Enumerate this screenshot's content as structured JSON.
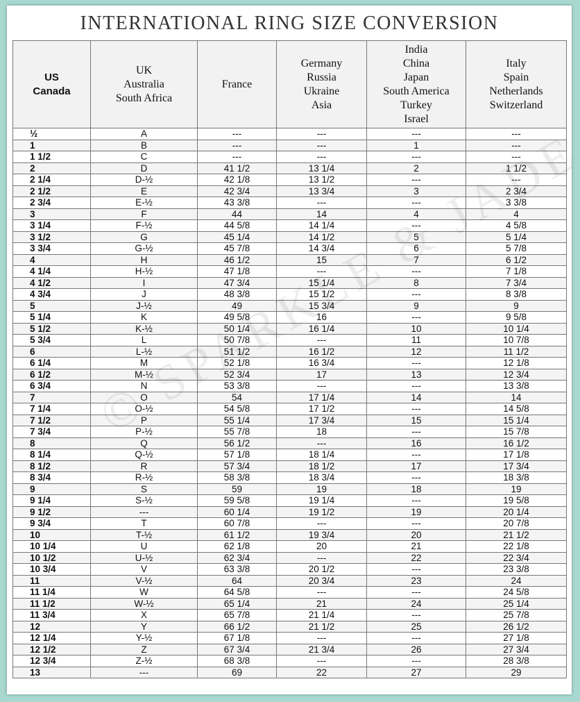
{
  "title": "INTERNATIONAL RING SIZE CONVERSION",
  "watermark": "© SPARKLE & JADE",
  "table": {
    "columns": [
      [
        "US",
        "Canada"
      ],
      [
        "UK",
        "Australia",
        "South Africa"
      ],
      [
        "France"
      ],
      [
        "Germany",
        "Russia",
        "Ukraine",
        "Asia"
      ],
      [
        "India",
        "China",
        "Japan",
        "South America",
        "Turkey",
        "Israel"
      ],
      [
        "Italy",
        "Spain",
        "Netherlands",
        "Switzerland"
      ]
    ],
    "rows": [
      [
        "½",
        "A",
        "---",
        "---",
        "---",
        "---"
      ],
      [
        "1",
        "B",
        "---",
        "---",
        "1",
        "---"
      ],
      [
        "1 1/2",
        "C",
        "---",
        "---",
        "---",
        "---"
      ],
      [
        "2",
        "D",
        "41 1/2",
        "13 1/4",
        "2",
        "1 1/2"
      ],
      [
        "2 1/4",
        "D-½",
        "42 1/8",
        "13 1/2",
        "---",
        "---"
      ],
      [
        "2 1/2",
        "E",
        "42 3/4",
        "13 3/4",
        "3",
        "2 3/4"
      ],
      [
        "2 3/4",
        "E-½",
        "43 3/8",
        "---",
        "---",
        "3 3/8"
      ],
      [
        "3",
        "F",
        "44",
        "14",
        "4",
        "4"
      ],
      [
        "3 1/4",
        "F-½",
        "44 5/8",
        "14 1/4",
        "---",
        "4 5/8"
      ],
      [
        "3 1/2",
        "G",
        "45 1/4",
        "14 1/2",
        "5",
        "5 1/4"
      ],
      [
        "3 3/4",
        "G-½",
        "45 7/8",
        "14 3/4",
        "6",
        "5 7/8"
      ],
      [
        "4",
        "H",
        "46 1/2",
        "15",
        "7",
        "6 1/2"
      ],
      [
        "4 1/4",
        "H-½",
        "47 1/8",
        "---",
        "---",
        "7 1/8"
      ],
      [
        "4 1/2",
        "I",
        "47 3/4",
        "15 1/4",
        "8",
        "7 3/4"
      ],
      [
        "4 3/4",
        "J",
        "48 3/8",
        "15 1/2",
        "---",
        "8 3/8"
      ],
      [
        "5",
        "J-½",
        "49",
        "15 3/4",
        "9",
        "9"
      ],
      [
        "5 1/4",
        "K",
        "49 5/8",
        "16",
        "---",
        "9 5/8"
      ],
      [
        "5 1/2",
        "K-½",
        "50 1/4",
        "16 1/4",
        "10",
        "10 1/4"
      ],
      [
        "5 3/4",
        "L",
        "50 7/8",
        "---",
        "11",
        "10 7/8"
      ],
      [
        "6",
        "L-½",
        "51 1/2",
        "16 1/2",
        "12",
        "11 1/2"
      ],
      [
        "6 1/4",
        "M",
        "52 1/8",
        "16 3/4",
        "---",
        "12 1/8"
      ],
      [
        "6 1/2",
        "M-½",
        "52 3/4",
        "17",
        "13",
        "12 3/4"
      ],
      [
        "6 3/4",
        "N",
        "53 3/8",
        "---",
        "---",
        "13 3/8"
      ],
      [
        "7",
        "O",
        "54",
        "17 1/4",
        "14",
        "14"
      ],
      [
        "7 1/4",
        "O-½",
        "54 5/8",
        "17 1/2",
        "---",
        "14 5/8"
      ],
      [
        "7 1/2",
        "P",
        "55 1/4",
        "17 3/4",
        "15",
        "15 1/4"
      ],
      [
        "7 3/4",
        "P-½",
        "55 7/8",
        "18",
        "---",
        "15 7/8"
      ],
      [
        "8",
        "Q",
        "56 1/2",
        "---",
        "16",
        "16 1/2"
      ],
      [
        "8 1/4",
        "Q-½",
        "57 1/8",
        "18 1/4",
        "---",
        "17 1/8"
      ],
      [
        "8 1/2",
        "R",
        "57 3/4",
        "18 1/2",
        "17",
        "17 3/4"
      ],
      [
        "8 3/4",
        "R-½",
        "58 3/8",
        "18 3/4",
        "---",
        "18 3/8"
      ],
      [
        "9",
        "S",
        "59",
        "19",
        "18",
        "19"
      ],
      [
        "9 1/4",
        "S-½",
        "59 5/8",
        "19 1/4",
        "---",
        "19 5/8"
      ],
      [
        "9 1/2",
        "---",
        "60 1/4",
        "19 1/2",
        "19",
        "20 1/4"
      ],
      [
        "9 3/4",
        "T",
        "60 7/8",
        "---",
        "---",
        "20 7/8"
      ],
      [
        "10",
        "T-½",
        "61 1/2",
        "19 3/4",
        "20",
        "21 1/2"
      ],
      [
        "10 1/4",
        "U",
        "62 1/8",
        "20",
        "21",
        "22 1/8"
      ],
      [
        "10 1/2",
        "U-½",
        "62 3/4",
        "---",
        "22",
        "22 3/4"
      ],
      [
        "10 3/4",
        "V",
        "63 3/8",
        "20 1/2",
        "---",
        "23 3/8"
      ],
      [
        "11",
        "V-½",
        "64",
        "20 3/4",
        "23",
        "24"
      ],
      [
        "11 1/4",
        "W",
        "64 5/8",
        "---",
        "---",
        "24 5/8"
      ],
      [
        "11 1/2",
        "W-½",
        "65 1/4",
        "21",
        "24",
        "25 1/4"
      ],
      [
        "11 3/4",
        "X",
        "65 7/8",
        "21 1/4",
        "---",
        "25 7/8"
      ],
      [
        "12",
        "Y",
        "66 1/2",
        "21 1/2",
        "25",
        "26 1/2"
      ],
      [
        "12 1/4",
        "Y-½",
        "67 1/8",
        "---",
        "---",
        "27 1/8"
      ],
      [
        "12 1/2",
        "Z",
        "67 3/4",
        "21 3/4",
        "26",
        "27 3/4"
      ],
      [
        "12 3/4",
        "Z-½",
        "68 3/8",
        "---",
        "---",
        "28 3/8"
      ],
      [
        "13",
        "---",
        "69",
        "22",
        "27",
        "29"
      ]
    ]
  }
}
